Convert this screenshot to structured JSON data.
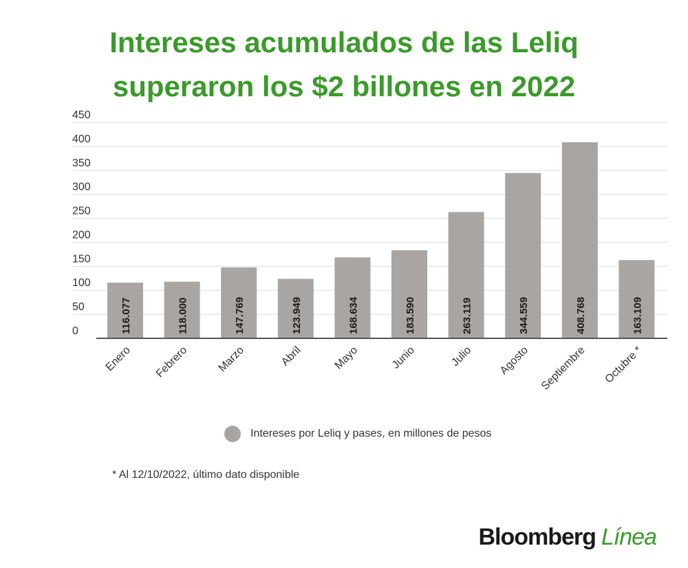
{
  "title_line1": "Intereses acumulados de las Leliq",
  "title_line2": "superaron los $2 billones en 2022",
  "chart_data": {
    "type": "bar",
    "categories": [
      "Enero",
      "Febrero",
      "Marzo",
      "Abril",
      "Mayo",
      "Junio",
      "Julio",
      "Agosto",
      "Septiembre",
      "Octubre *"
    ],
    "series": [
      {
        "name": "Intereses por Leliq y pases, en millones de pesos",
        "values": [
          116.077,
          118.0,
          147.769,
          123.949,
          168.634,
          183.59,
          263.119,
          344.559,
          408.768,
          163.109
        ]
      }
    ],
    "value_labels": [
      "116.077",
      "118.000",
      "147.769",
      "123.949",
      "168.634",
      "183.590",
      "263.119",
      "344.559",
      "408.768",
      "163.109"
    ],
    "ylim": [
      0,
      450
    ],
    "yticks": [
      0,
      50,
      100,
      150,
      200,
      250,
      300,
      350,
      400,
      450
    ],
    "grid": true,
    "legend_position": "bottom",
    "bar_color": "#a9a5a3"
  },
  "legend_label": "Intereses por Leliq y pases, en millones de pesos",
  "footnote": "* Al 12/10/2022, último dato disponible",
  "brand_part1": "Bloomberg",
  "brand_part2": "Línea",
  "colors": {
    "title": "#3a9a2a",
    "bar": "#a9a5a3",
    "grid": "#dddddd",
    "axis": "#555555"
  }
}
